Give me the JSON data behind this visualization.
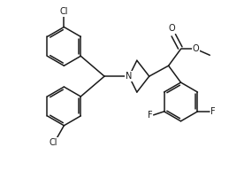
{
  "bg_color": "#ffffff",
  "line_color": "#1a1a1a",
  "line_width": 1.1,
  "font_size_atoms": 7.0,
  "fig_width": 2.59,
  "fig_height": 2.1,
  "dpi": 100,
  "xlim": [
    0,
    259
  ],
  "ylim": [
    0,
    210
  ]
}
